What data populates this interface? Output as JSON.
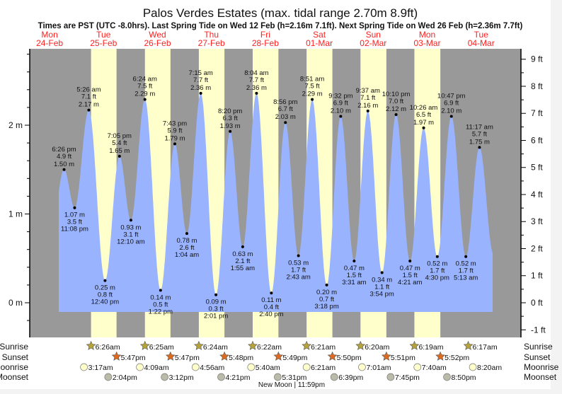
{
  "chart_data": {
    "type": "area",
    "title": "Palos Verdes Estates (max. tidal range 2.70m 8.9ft)",
    "subtitle": "Times are PST (UTC -8.0hrs). Last Spring Tide on Wed 12 Feb (h=2.16m 7.1ft). Next Spring Tide on Wed 26 Feb (h=2.36m 7.7ft)",
    "days": [
      {
        "dow": "Mon",
        "date": "24-Feb"
      },
      {
        "dow": "Tue",
        "date": "25-Feb"
      },
      {
        "dow": "Wed",
        "date": "26-Feb"
      },
      {
        "dow": "Thu",
        "date": "27-Feb"
      },
      {
        "dow": "Fri",
        "date": "28-Feb"
      },
      {
        "dow": "Sat",
        "date": "01-Mar"
      },
      {
        "dow": "Sun",
        "date": "02-Mar"
      },
      {
        "dow": "Mon",
        "date": "03-Mar"
      },
      {
        "dow": "Tue",
        "date": "04-Mar"
      }
    ],
    "left_axis": {
      "unit": "m",
      "ticks": [
        "0 m",
        "1 m",
        "2 m"
      ],
      "ylim_m": [
        -0.39,
        2.87
      ]
    },
    "right_axis": {
      "unit": "ft",
      "ticks": [
        "-1 ft",
        "0 ft",
        "1 ft",
        "2 ft",
        "3 ft",
        "4 ft",
        "5 ft",
        "6 ft",
        "7 ft",
        "8 ft",
        "9 ft"
      ]
    },
    "extremes": [
      {
        "day": 0,
        "type": "high",
        "time": "6:26 pm",
        "ft": "4.9 ft",
        "m": "1.50 m",
        "value": 1.5
      },
      {
        "day": 0,
        "type": "low",
        "time": "11:08 pm",
        "ft": "3.5 ft",
        "m": "1.07 m",
        "value": 1.07
      },
      {
        "day": 1,
        "type": "high",
        "time": "5:26 am",
        "ft": "7.1 ft",
        "m": "2.17 m",
        "value": 2.17
      },
      {
        "day": 1,
        "type": "low",
        "time": "12:40 pm",
        "ft": "0.8 ft",
        "m": "0.25 m",
        "value": 0.25
      },
      {
        "day": 1,
        "type": "high",
        "time": "7:05 pm",
        "ft": "5.4 ft",
        "m": "1.65 m",
        "value": 1.65
      },
      {
        "day": 2,
        "type": "low",
        "time": "12:10 am",
        "ft": "3.1 ft",
        "m": "0.93 m",
        "value": 0.93
      },
      {
        "day": 2,
        "type": "high",
        "time": "6:24 am",
        "ft": "7.5 ft",
        "m": "2.29 m",
        "value": 2.29
      },
      {
        "day": 2,
        "type": "low",
        "time": "1:22 pm",
        "ft": "0.5 ft",
        "m": "0.14 m",
        "value": 0.14
      },
      {
        "day": 2,
        "type": "high",
        "time": "7:43 pm",
        "ft": "5.9 ft",
        "m": "1.79 m",
        "value": 1.79
      },
      {
        "day": 3,
        "type": "low",
        "time": "1:04 am",
        "ft": "2.6 ft",
        "m": "0.78 m",
        "value": 0.78
      },
      {
        "day": 3,
        "type": "high",
        "time": "7:15 am",
        "ft": "7.7 ft",
        "m": "2.36 m",
        "value": 2.36
      },
      {
        "day": 3,
        "type": "low",
        "time": "2:01 pm",
        "ft": "0.3 ft",
        "m": "0.09 m",
        "value": 0.09
      },
      {
        "day": 3,
        "type": "high",
        "time": "8:20 pm",
        "ft": "6.3 ft",
        "m": "1.93 m",
        "value": 1.93
      },
      {
        "day": 4,
        "type": "low",
        "time": "1:55 am",
        "ft": "2.1 ft",
        "m": "0.63 m",
        "value": 0.63
      },
      {
        "day": 4,
        "type": "high",
        "time": "8:04 am",
        "ft": "7.7 ft",
        "m": "2.36 m",
        "value": 2.36
      },
      {
        "day": 4,
        "type": "low",
        "time": "2:40 pm",
        "ft": "0.4 ft",
        "m": "0.11 m",
        "value": 0.11
      },
      {
        "day": 4,
        "type": "high",
        "time": "8:56 pm",
        "ft": "6.7 ft",
        "m": "2.03 m",
        "value": 2.03
      },
      {
        "day": 5,
        "type": "low",
        "time": "2:43 am",
        "ft": "1.7 ft",
        "m": "0.53 m",
        "value": 0.53
      },
      {
        "day": 5,
        "type": "high",
        "time": "8:51 am",
        "ft": "7.5 ft",
        "m": "2.29 m",
        "value": 2.29
      },
      {
        "day": 5,
        "type": "low",
        "time": "3:18 pm",
        "ft": "0.7 ft",
        "m": "0.20 m",
        "value": 0.2
      },
      {
        "day": 5,
        "type": "high",
        "time": "9:32 pm",
        "ft": "6.9 ft",
        "m": "2.10 m",
        "value": 2.1
      },
      {
        "day": 6,
        "type": "low",
        "time": "3:31 am",
        "ft": "1.5 ft",
        "m": "0.47 m",
        "value": 0.47
      },
      {
        "day": 6,
        "type": "high",
        "time": "9:37 am",
        "ft": "7.1 ft",
        "m": "2.16 m",
        "value": 2.16
      },
      {
        "day": 6,
        "type": "low",
        "time": "3:54 pm",
        "ft": "1.1 ft",
        "m": "0.34 m",
        "value": 0.34
      },
      {
        "day": 6,
        "type": "high",
        "time": "10:10 pm",
        "ft": "7.0 ft",
        "m": "2.12 m",
        "value": 2.12
      },
      {
        "day": 7,
        "type": "low",
        "time": "4:21 am",
        "ft": "1.5 ft",
        "m": "0.47 m",
        "value": 0.47
      },
      {
        "day": 7,
        "type": "high",
        "time": "10:26 am",
        "ft": "6.5 ft",
        "m": "1.97 m",
        "value": 1.97
      },
      {
        "day": 7,
        "type": "low",
        "time": "4:30 pm",
        "ft": "1.7 ft",
        "m": "0.52 m",
        "value": 0.52
      },
      {
        "day": 7,
        "type": "high",
        "time": "10:47 pm",
        "ft": "6.9 ft",
        "m": "2.10 m",
        "value": 2.1
      },
      {
        "day": 8,
        "type": "low",
        "time": "5:13 am",
        "ft": "1.7 ft",
        "m": "0.52 m",
        "value": 0.52
      },
      {
        "day": 8,
        "type": "high",
        "time": "11:17 am",
        "ft": "5.7 ft",
        "m": "1.75 m",
        "value": 1.75
      }
    ],
    "sun_moon": {
      "row_labels": {
        "sunrise": "Sunrise",
        "sunset": "Sunset",
        "moonrise": "Moonrise",
        "moonset": "Moonset"
      },
      "sunrise": [
        {
          "day": 1,
          "time": "6:26am"
        },
        {
          "day": 2,
          "time": "6:25am"
        },
        {
          "day": 3,
          "time": "6:24am"
        },
        {
          "day": 4,
          "time": "6:22am"
        },
        {
          "day": 5,
          "time": "6:21am"
        },
        {
          "day": 6,
          "time": "6:20am"
        },
        {
          "day": 7,
          "time": "6:19am"
        },
        {
          "day": 8,
          "time": "6:17am"
        }
      ],
      "sunset": [
        {
          "day": 1,
          "time": "5:47pm"
        },
        {
          "day": 2,
          "time": "5:47pm"
        },
        {
          "day": 3,
          "time": "5:48pm"
        },
        {
          "day": 4,
          "time": "5:49pm"
        },
        {
          "day": 5,
          "time": "5:50pm"
        },
        {
          "day": 6,
          "time": "5:51pm"
        },
        {
          "day": 7,
          "time": "5:52pm"
        }
      ],
      "moonrise": [
        {
          "day": 1,
          "time": "3:17am"
        },
        {
          "day": 2,
          "time": "4:09am"
        },
        {
          "day": 3,
          "time": "4:56am"
        },
        {
          "day": 4,
          "time": "5:40am"
        },
        {
          "day": 5,
          "time": "6:21am"
        },
        {
          "day": 6,
          "time": "7:01am"
        },
        {
          "day": 7,
          "time": "7:40am"
        },
        {
          "day": 8,
          "time": "8:20am"
        }
      ],
      "moonset": [
        {
          "day": 1,
          "time": "2:04pm"
        },
        {
          "day": 2,
          "time": "3:12pm"
        },
        {
          "day": 3,
          "time": "4:21pm"
        },
        {
          "day": 4,
          "time": "5:31pm"
        },
        {
          "day": 5,
          "time": "6:39pm"
        },
        {
          "day": 6,
          "time": "7:45pm"
        },
        {
          "day": 7,
          "time": "8:50pm"
        }
      ],
      "moon_phase": "New Moon | 11:59pm"
    },
    "colors": {
      "night": "#999999",
      "day": "#ffffcc",
      "tide": "#99b3ff",
      "day_labels": "#ff2020",
      "sunrise_icon": "#b5a33a",
      "sunset_icon": "#dd6a1e",
      "moonrise_icon": "#ffffcc",
      "moonset_icon": "#bbbbaa"
    }
  }
}
